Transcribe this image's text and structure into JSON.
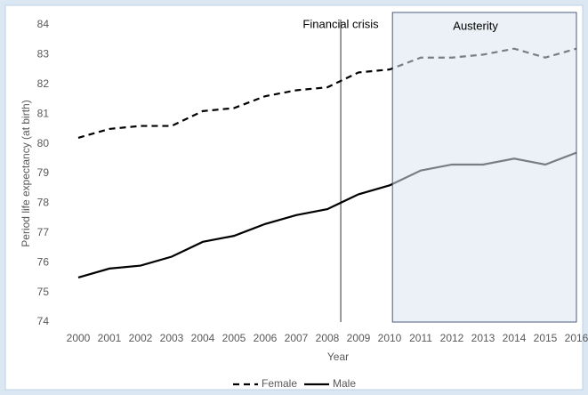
{
  "chart_data": {
    "type": "line",
    "xlabel": "Year",
    "ylabel": "Period life expectancy (at birth)",
    "categories": [
      "2000",
      "2001",
      "2002",
      "2003",
      "2004",
      "2005",
      "2006",
      "2007",
      "2008",
      "2009",
      "2010",
      "2011",
      "2012",
      "2013",
      "2014",
      "2015",
      "2016"
    ],
    "series": [
      {
        "name": "Female",
        "color": "#000000",
        "line_style": "dashed",
        "values": [
          80.2,
          80.5,
          80.6,
          80.6,
          81.1,
          81.2,
          81.6,
          81.8,
          81.9,
          82.4,
          82.5,
          82.9,
          82.9,
          83.0,
          83.2,
          82.9,
          83.2
        ]
      },
      {
        "name": "Male",
        "color": "#000000",
        "line_style": "solid",
        "values": [
          75.5,
          75.8,
          75.9,
          76.2,
          76.7,
          76.9,
          77.3,
          77.6,
          77.8,
          78.3,
          78.6,
          79.1,
          79.3,
          79.3,
          79.5,
          79.3,
          79.7
        ]
      }
    ],
    "ylim": [
      74,
      84
    ],
    "yticks": [
      74,
      75,
      76,
      77,
      78,
      79,
      80,
      81,
      82,
      83,
      84
    ],
    "grid": false,
    "legend": "bottom",
    "annotations": [
      {
        "text": "Financial crisis"
      },
      {
        "text": "Austerity",
        "color": "#dce6f1"
      }
    ]
  }
}
